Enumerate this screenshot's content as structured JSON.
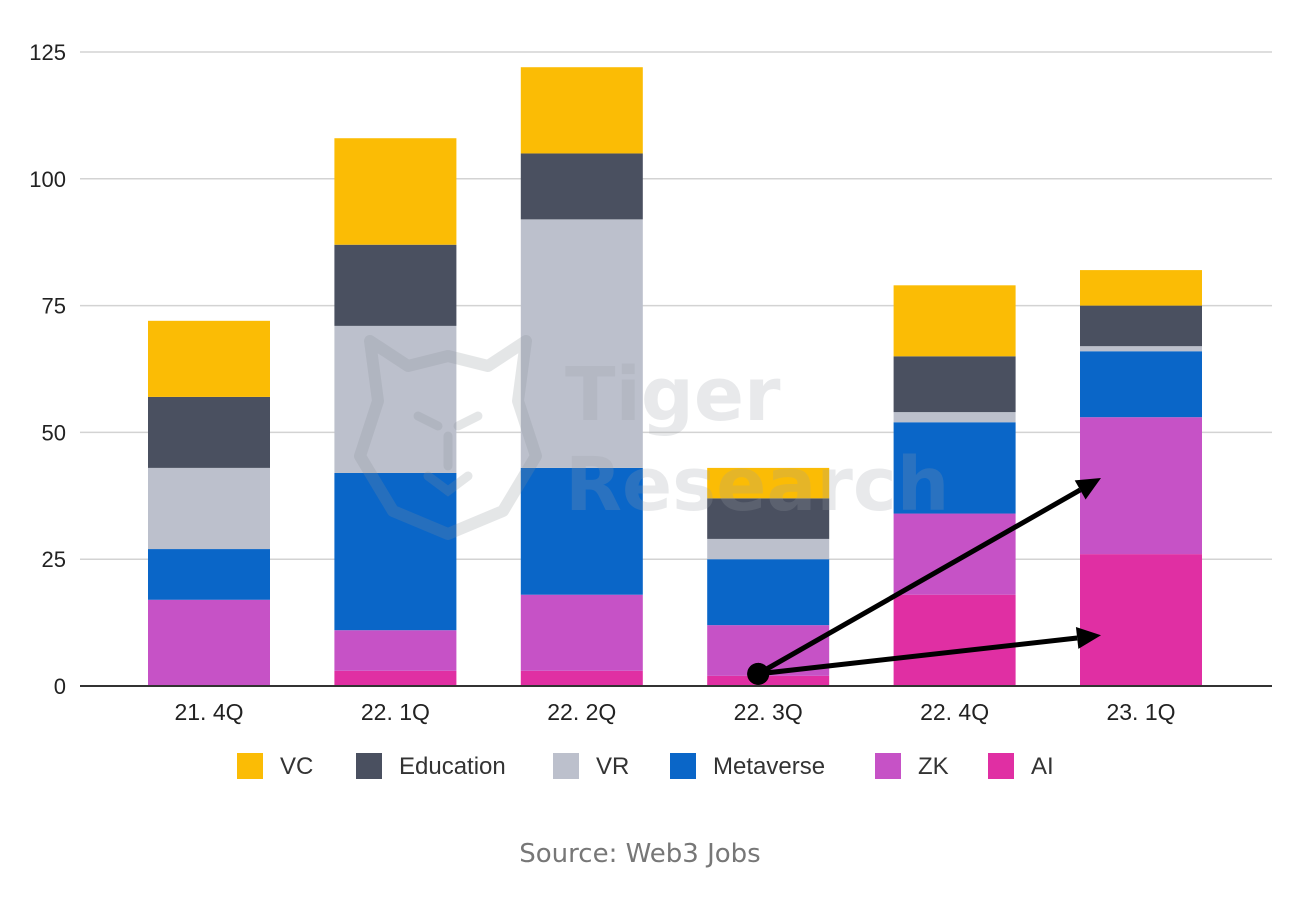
{
  "chart_data": {
    "type": "bar",
    "stacked": true,
    "categories": [
      "21. 4Q",
      "22. 1Q",
      "22. 2Q",
      "22. 3Q",
      "22. 4Q",
      "23. 1Q"
    ],
    "series": [
      {
        "name": "AI",
        "color": "#e02fa3",
        "values": [
          0,
          3,
          3,
          2,
          18,
          26
        ]
      },
      {
        "name": "ZK",
        "color": "#c652c6",
        "values": [
          17,
          8,
          15,
          10,
          16,
          27
        ]
      },
      {
        "name": "Metaverse",
        "color": "#0a66c8",
        "values": [
          10,
          31,
          25,
          13,
          18,
          13
        ]
      },
      {
        "name": "VR",
        "color": "#bcc0cc",
        "values": [
          16,
          29,
          49,
          4,
          2,
          1
        ]
      },
      {
        "name": "Education",
        "color": "#4a5060",
        "values": [
          14,
          16,
          13,
          8,
          11,
          8
        ]
      },
      {
        "name": "VC",
        "color": "#fbbc05",
        "values": [
          15,
          21,
          17,
          6,
          14,
          7
        ]
      }
    ],
    "legend_order": [
      "VC",
      "Education",
      "VR",
      "Metaverse",
      "ZK",
      "AI"
    ],
    "ylim": [
      0,
      125
    ],
    "yticks": [
      0,
      25,
      50,
      75,
      100,
      125
    ],
    "grid": true,
    "legend_position": "bottom",
    "title": "",
    "xlabel": "",
    "ylabel": "",
    "annotations": [
      {
        "type": "arrow",
        "from": {
          "category": "22. 3Q",
          "y": 2
        },
        "to": {
          "category": "23. 1Q",
          "y": 41
        }
      },
      {
        "type": "arrow",
        "from": {
          "category": "22. 3Q",
          "y": 2
        },
        "to": {
          "category": "23. 1Q",
          "y": 10
        }
      }
    ]
  },
  "watermark": {
    "line1": "Tiger",
    "line2": "Research"
  },
  "source": "Source: Web3 Jobs"
}
